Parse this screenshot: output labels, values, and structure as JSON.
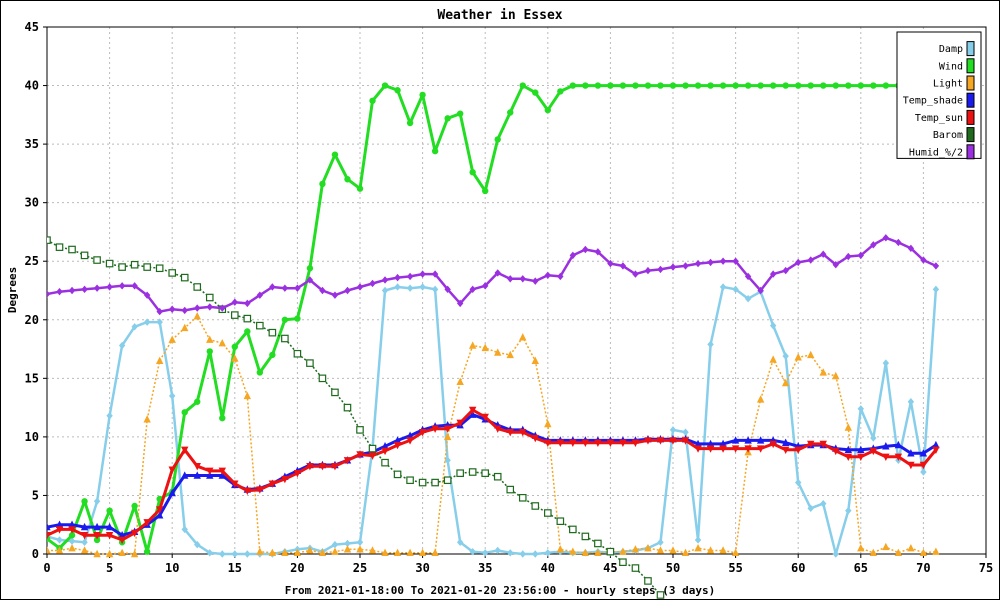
{
  "chart_data": {
    "type": "line",
    "title": "Weather in Essex",
    "xlabel": "From 2021-01-18:00 To 2021-01-20 23:56:00 - hourly steps (3 days)",
    "ylabel": "Degrees",
    "xlim": [
      0,
      75
    ],
    "ylim": [
      0,
      45
    ],
    "xticks": [
      0,
      5,
      10,
      15,
      20,
      25,
      30,
      35,
      40,
      45,
      50,
      55,
      60,
      65,
      70,
      75
    ],
    "yticks": [
      0,
      5,
      10,
      15,
      20,
      25,
      30,
      35,
      40,
      45
    ],
    "grid": true,
    "legend_position": "top-right",
    "series": [
      {
        "name": "Damp",
        "color": "#87ceeb",
        "marker": "diamond",
        "dash": false,
        "width": 2.5,
        "x": [
          0,
          1,
          2,
          3,
          4,
          5,
          6,
          7,
          8,
          9,
          10,
          11,
          12,
          13,
          14,
          15,
          16,
          17,
          18,
          19,
          20,
          21,
          22,
          23,
          24,
          25,
          26,
          27,
          28,
          29,
          30,
          31,
          32,
          33,
          34,
          35,
          36,
          37,
          38,
          39,
          40,
          41,
          42,
          43,
          44,
          45,
          46,
          47,
          48,
          49,
          50,
          51,
          52,
          53,
          54,
          55,
          56,
          57,
          58,
          59,
          60,
          61,
          62,
          63,
          64,
          65,
          66,
          67,
          68,
          69,
          70,
          71
        ],
        "values": [
          1.5,
          1.2,
          1.1,
          1.0,
          4.5,
          11.8,
          17.8,
          19.4,
          19.8,
          19.8,
          13.5,
          2.1,
          0.8,
          0.1,
          0,
          0,
          0,
          0,
          0,
          0.2,
          0.4,
          0.5,
          0.2,
          0.8,
          0.9,
          1.0,
          9.0,
          22.5,
          22.8,
          22.7,
          22.8,
          22.6,
          8.0,
          1.0,
          0.2,
          0.1,
          0.3,
          0.1,
          0,
          0,
          0.1,
          0.2,
          0.1,
          0.1,
          0.2,
          0.1,
          0.2,
          0.3,
          0.5,
          1.0,
          10.6,
          10.4,
          1.2,
          17.9,
          22.8,
          22.6,
          21.8,
          22.4,
          19.5,
          16.9,
          6.1,
          3.9,
          4.3,
          0,
          3.7,
          12.4,
          9.9,
          16.3,
          8.0,
          13.0,
          7.0,
          22.6
        ]
      },
      {
        "name": "Wind",
        "color": "#22dd22",
        "marker": "circle",
        "dash": false,
        "width": 3,
        "x": [
          0,
          1,
          2,
          3,
          4,
          5,
          6,
          7,
          8,
          9,
          10,
          11,
          12,
          13,
          14,
          15,
          16,
          17,
          18,
          19,
          20,
          21,
          22,
          23,
          24,
          25,
          26,
          27,
          28,
          29,
          30,
          31,
          32,
          33,
          34,
          35,
          36,
          37,
          38,
          39,
          40,
          41,
          42,
          43,
          44,
          45,
          46,
          47,
          48,
          49,
          50,
          51,
          52,
          53,
          54,
          55,
          56,
          57,
          58,
          59,
          60,
          61,
          62,
          63,
          64,
          65,
          66,
          67,
          68,
          69,
          70,
          71
        ],
        "values": [
          1.3,
          0.5,
          1.6,
          4.5,
          1.2,
          3.7,
          1.0,
          4.1,
          0.2,
          4.7,
          5.3,
          12.1,
          13.0,
          17.3,
          11.6,
          17.7,
          19.0,
          15.5,
          17.0,
          20.0,
          20.1,
          24.4,
          31.6,
          34.1,
          32.0,
          31.2,
          38.7,
          40.0,
          39.6,
          36.8,
          39.2,
          34.4,
          37.2,
          37.6,
          32.6,
          31.0,
          35.4,
          37.7,
          40.0,
          39.4,
          37.9,
          39.5,
          40,
          40,
          40,
          40,
          40,
          40,
          40,
          40,
          40,
          40,
          40,
          40,
          40,
          40,
          40,
          40,
          40,
          40,
          40,
          40,
          40,
          40,
          40,
          40,
          40,
          40,
          40,
          40,
          40,
          40
        ]
      },
      {
        "name": "Light",
        "color": "#f5a623",
        "marker": "triangle",
        "dash": true,
        "width": 1.5,
        "x": [
          0,
          1,
          2,
          3,
          4,
          5,
          6,
          7,
          8,
          9,
          10,
          11,
          12,
          13,
          14,
          15,
          16,
          17,
          18,
          19,
          20,
          21,
          22,
          23,
          24,
          25,
          26,
          27,
          28,
          29,
          30,
          31,
          32,
          33,
          34,
          35,
          36,
          37,
          38,
          39,
          40,
          41,
          42,
          43,
          44,
          45,
          46,
          47,
          48,
          49,
          50,
          51,
          52,
          53,
          54,
          55,
          56,
          57,
          58,
          59,
          60,
          61,
          62,
          63,
          64,
          65,
          66,
          67,
          68,
          69,
          70,
          71
        ],
        "values": [
          0.3,
          0.3,
          0.5,
          0.3,
          0,
          0,
          0.1,
          0,
          11.5,
          16.5,
          18.3,
          19.3,
          20.3,
          18.3,
          18.0,
          16.7,
          13.5,
          0.2,
          0.1,
          0.1,
          0.1,
          0.3,
          0.1,
          0.2,
          0.4,
          0.4,
          0.3,
          0.1,
          0.1,
          0.1,
          0.1,
          0.1,
          10.0,
          14.7,
          17.8,
          17.6,
          17.2,
          17.0,
          18.5,
          16.5,
          11.1,
          0.4,
          0.2,
          0.1,
          0.1,
          0.2,
          0.2,
          0.4,
          0.5,
          0.3,
          0.3,
          0.1,
          0.5,
          0.3,
          0.3,
          0.1,
          8.7,
          13.2,
          16.6,
          14.6,
          16.8,
          17.0,
          15.5,
          15.2,
          10.8,
          0.5,
          0.1,
          0.6,
          0.1,
          0.5,
          0.1,
          0.2
        ]
      },
      {
        "name": "Temp_shade",
        "color": "#1a1aee",
        "marker": "triangle",
        "dash": false,
        "width": 3,
        "x": [
          0,
          1,
          2,
          3,
          4,
          5,
          6,
          7,
          8,
          9,
          10,
          11,
          12,
          13,
          14,
          15,
          16,
          17,
          18,
          19,
          20,
          21,
          22,
          23,
          24,
          25,
          26,
          27,
          28,
          29,
          30,
          31,
          32,
          33,
          34,
          35,
          36,
          37,
          38,
          39,
          40,
          41,
          42,
          43,
          44,
          45,
          46,
          47,
          48,
          49,
          50,
          51,
          52,
          53,
          54,
          55,
          56,
          57,
          58,
          59,
          60,
          61,
          62,
          63,
          64,
          65,
          66,
          67,
          68,
          69,
          70,
          71
        ],
        "values": [
          2.3,
          2.5,
          2.5,
          2.3,
          2.3,
          2.3,
          1.6,
          1.9,
          2.5,
          3.3,
          5.2,
          6.7,
          6.7,
          6.7,
          6.7,
          5.9,
          5.5,
          5.6,
          6.0,
          6.6,
          7.1,
          7.6,
          7.6,
          7.6,
          8.0,
          8.5,
          8.7,
          9.2,
          9.7,
          10.1,
          10.6,
          10.9,
          11.0,
          11.0,
          11.9,
          11.5,
          11.0,
          10.6,
          10.6,
          10.1,
          9.7,
          9.7,
          9.7,
          9.7,
          9.7,
          9.7,
          9.7,
          9.7,
          9.8,
          9.8,
          9.8,
          9.8,
          9.4,
          9.4,
          9.4,
          9.7,
          9.7,
          9.7,
          9.7,
          9.5,
          9.2,
          9.3,
          9.3,
          9.0,
          8.9,
          8.9,
          9.0,
          9.2,
          9.3,
          8.6,
          8.6,
          9.3
        ]
      },
      {
        "name": "Temp_sun",
        "color": "#ee1111",
        "marker": "triangle-down",
        "dash": false,
        "width": 3,
        "x": [
          0,
          1,
          2,
          3,
          4,
          5,
          6,
          7,
          8,
          9,
          10,
          11,
          12,
          13,
          14,
          15,
          16,
          17,
          18,
          19,
          20,
          21,
          22,
          23,
          24,
          25,
          26,
          27,
          28,
          29,
          30,
          31,
          32,
          33,
          34,
          35,
          36,
          37,
          38,
          39,
          40,
          41,
          42,
          43,
          44,
          45,
          46,
          47,
          48,
          49,
          50,
          51,
          52,
          53,
          54,
          55,
          56,
          57,
          58,
          59,
          60,
          61,
          62,
          63,
          64,
          65,
          66,
          67,
          68,
          69,
          70,
          71
        ],
        "values": [
          1.6,
          2.1,
          2.1,
          1.6,
          1.6,
          1.6,
          1.2,
          1.8,
          2.7,
          3.8,
          7.2,
          8.9,
          7.5,
          7.1,
          7.1,
          6.0,
          5.4,
          5.5,
          6.0,
          6.4,
          6.9,
          7.5,
          7.5,
          7.5,
          8.0,
          8.5,
          8.4,
          8.8,
          9.3,
          9.7,
          10.4,
          10.7,
          10.7,
          11.2,
          12.3,
          11.7,
          10.7,
          10.4,
          10.4,
          9.9,
          9.5,
          9.5,
          9.5,
          9.5,
          9.5,
          9.5,
          9.5,
          9.5,
          9.7,
          9.7,
          9.7,
          9.7,
          9.0,
          9.0,
          9.0,
          9.0,
          9.0,
          9.0,
          9.4,
          8.9,
          8.9,
          9.4,
          9.4,
          8.8,
          8.3,
          8.3,
          8.8,
          8.3,
          8.3,
          7.6,
          7.6,
          8.9
        ]
      },
      {
        "name": "Barom",
        "color": "#1e6b1e",
        "marker": "square",
        "dash": true,
        "width": 1.5,
        "x": [
          0,
          1,
          2,
          3,
          4,
          5,
          6,
          7,
          8,
          9,
          10,
          11,
          12,
          13,
          14,
          15,
          16,
          17,
          18,
          19,
          20,
          21,
          22,
          23,
          24,
          25,
          26,
          27,
          28,
          29,
          30,
          31,
          32,
          33,
          34,
          35,
          36,
          37,
          38,
          39,
          40,
          41,
          42,
          43,
          44,
          45,
          46,
          47,
          48,
          49
        ],
        "values": [
          26.8,
          26.2,
          26.0,
          25.5,
          25.1,
          24.8,
          24.5,
          24.7,
          24.5,
          24.4,
          24.0,
          23.6,
          22.8,
          21.9,
          20.9,
          20.4,
          20.1,
          19.5,
          18.9,
          18.4,
          17.1,
          16.3,
          15.0,
          13.8,
          12.5,
          10.6,
          9.0,
          7.8,
          6.8,
          6.3,
          6.1,
          6.1,
          6.3,
          6.9,
          7.0,
          6.9,
          6.6,
          5.5,
          4.8,
          4.1,
          3.5,
          2.8,
          2.1,
          1.5,
          0.9,
          0.2,
          -0.7,
          -1.2,
          -2.3,
          -3.5
        ]
      },
      {
        "name": "Humid_%/2",
        "color": "#9b30e0",
        "marker": "diamond",
        "dash": false,
        "width": 2.5,
        "x": [
          0,
          1,
          2,
          3,
          4,
          5,
          6,
          7,
          8,
          9,
          10,
          11,
          12,
          13,
          14,
          15,
          16,
          17,
          18,
          19,
          20,
          21,
          22,
          23,
          24,
          25,
          26,
          27,
          28,
          29,
          30,
          31,
          32,
          33,
          34,
          35,
          36,
          37,
          38,
          39,
          40,
          41,
          42,
          43,
          44,
          45,
          46,
          47,
          48,
          49,
          50,
          51,
          52,
          53,
          54,
          55,
          56,
          57,
          58,
          59,
          60,
          61,
          62,
          63,
          64,
          65,
          66,
          67,
          68,
          69,
          70,
          71
        ],
        "values": [
          22.2,
          22.4,
          22.5,
          22.6,
          22.7,
          22.8,
          22.9,
          22.9,
          22.1,
          20.7,
          20.9,
          20.8,
          21.0,
          21.1,
          21.0,
          21.5,
          21.4,
          22.1,
          22.8,
          22.7,
          22.7,
          23.4,
          22.5,
          22.1,
          22.5,
          22.8,
          23.1,
          23.4,
          23.6,
          23.7,
          23.9,
          23.9,
          22.6,
          21.4,
          22.6,
          22.9,
          24.0,
          23.5,
          23.5,
          23.3,
          23.8,
          23.7,
          25.5,
          26.0,
          25.8,
          24.8,
          24.6,
          23.9,
          24.2,
          24.3,
          24.5,
          24.6,
          24.8,
          24.9,
          25.0,
          25.0,
          23.7,
          22.5,
          23.9,
          24.2,
          24.9,
          25.1,
          25.6,
          24.7,
          25.4,
          25.5,
          26.4,
          27.0,
          26.6,
          26.1,
          25.1,
          24.6
        ]
      }
    ]
  }
}
